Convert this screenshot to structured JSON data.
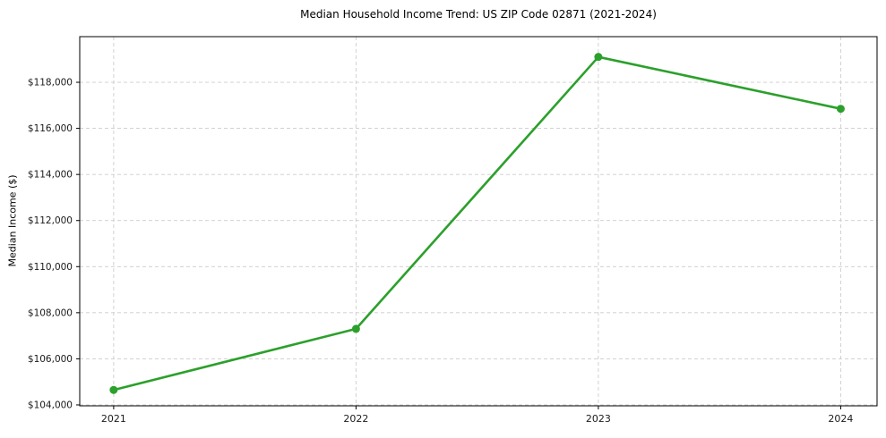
{
  "chart_data": {
    "type": "line",
    "title": "Median Household Income Trend: US ZIP Code 02871 (2021-2024)",
    "xlabel": "",
    "ylabel": "Median Income ($)",
    "x": [
      2021,
      2022,
      2023,
      2024
    ],
    "x_tick_labels": [
      "2021",
      "2022",
      "2023",
      "2024"
    ],
    "series": [
      {
        "name": "Median Household Income",
        "values": [
          104650,
          107300,
          119100,
          116850
        ],
        "color": "#2ca02c",
        "marker": "circle"
      }
    ],
    "y_ticks": [
      104000,
      106000,
      108000,
      110000,
      112000,
      114000,
      116000,
      118000
    ],
    "y_tick_labels": [
      "$104,000",
      "$106,000",
      "$108,000",
      "$110,000",
      "$112,000",
      "$114,000",
      "$116,000",
      "$118,000"
    ],
    "xlim": [
      2020.86,
      2024.15
    ],
    "ylim": [
      103960,
      119980
    ],
    "grid": true,
    "grid_style": "dashed",
    "legend": false,
    "colors": {
      "line": "#2ca02c",
      "grid": "#cccccc",
      "spine": "#000000",
      "tick_text": "#1a1a1a",
      "background": "#ffffff"
    }
  }
}
